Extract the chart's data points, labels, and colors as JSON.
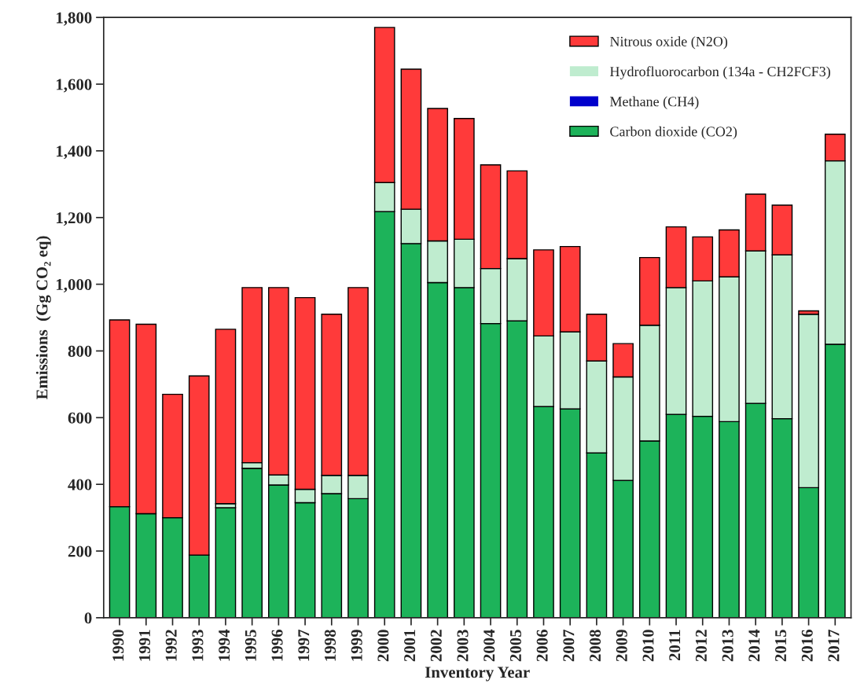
{
  "chart_data": {
    "type": "bar",
    "stacked": true,
    "xlabel": "Inventory Year",
    "ylabel": "Emissions  (Gg CO₂ eq)",
    "categories": [
      "1990",
      "1991",
      "1992",
      "1993",
      "1994",
      "1995",
      "1996",
      "1997",
      "1998",
      "1999",
      "2000",
      "2001",
      "2002",
      "2003",
      "2004",
      "2005",
      "2006",
      "2007",
      "2008",
      "2009",
      "2010",
      "2011",
      "2012",
      "2013",
      "2014",
      "2015",
      "2016",
      "2017"
    ],
    "series": [
      {
        "name": "Carbon dioxide (CO2)",
        "color": "#1db35a",
        "values": [
          333,
          312,
          300,
          188,
          330,
          448,
          398,
          345,
          372,
          357,
          1218,
          1122,
          1005,
          990,
          882,
          890,
          633,
          626,
          494,
          412,
          530,
          610,
          604,
          588,
          643,
          597,
          390,
          820
        ]
      },
      {
        "name": "Methane (CH4)",
        "color": "#0000cc",
        "values": [
          0,
          0,
          0,
          0,
          0,
          0,
          0,
          0,
          0,
          0,
          0,
          0,
          0,
          0,
          0,
          0,
          0,
          0,
          0,
          0,
          0,
          0,
          0,
          0,
          0,
          0,
          0,
          0
        ]
      },
      {
        "name": "Hydrofluorocarbon (134a - CH2FCF3)",
        "color": "#bfeccf",
        "values": [
          0,
          0,
          0,
          0,
          12,
          17,
          30,
          40,
          55,
          70,
          87,
          103,
          125,
          145,
          165,
          187,
          212,
          231,
          276,
          310,
          347,
          380,
          406,
          434,
          457,
          491,
          520,
          550
        ]
      },
      {
        "name": "Nitrous oxide (N2O)",
        "color": "#ff3a3a",
        "values": [
          560,
          568,
          370,
          537,
          523,
          525,
          562,
          575,
          483,
          563,
          465,
          420,
          397,
          362,
          311,
          263,
          258,
          256,
          140,
          100,
          203,
          182,
          132,
          141,
          170,
          149,
          10,
          80
        ]
      }
    ],
    "ylim": [
      0,
      1800
    ],
    "yticks": [
      0,
      200,
      400,
      600,
      800,
      {
        "value": 1000,
        "label": "1,000"
      },
      {
        "value": 1200,
        "label": "1,200"
      },
      {
        "value": 1400,
        "label": "1,400"
      },
      {
        "value": 1600,
        "label": "1,600"
      },
      {
        "value": 1800,
        "label": "1,800"
      }
    ],
    "legend": "top right",
    "grid": false
  }
}
